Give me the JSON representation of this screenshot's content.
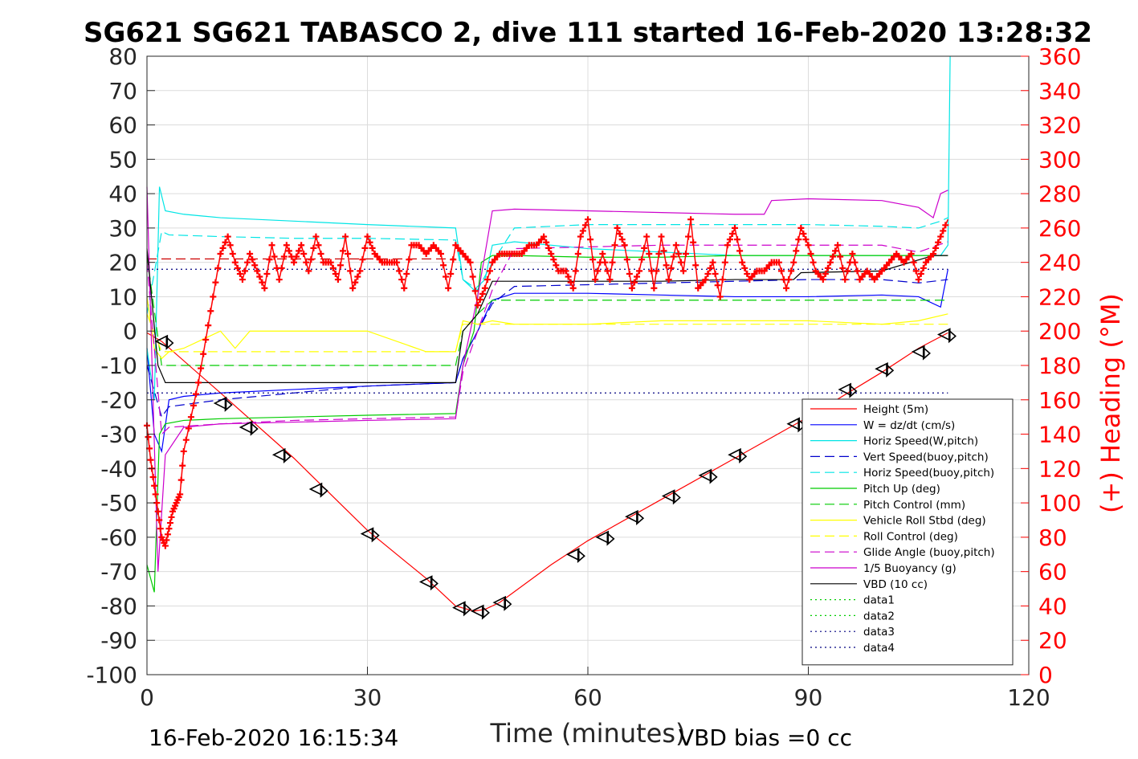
{
  "chart_data": {
    "type": "line",
    "title": "SG621 SG621 TABASCO 2, dive 111 started 16-Feb-2020 13:28:32",
    "xlabel": "Time (minutes)",
    "ylabel_right": "(+) Heading (°M)",
    "footer_left": "16-Feb-2020 16:15:34",
    "footer_right": "VBD bias =0 cc",
    "xlim": [
      0,
      120
    ],
    "ylim": [
      -100,
      80
    ],
    "ylim_right": [
      0,
      360
    ],
    "x_ticks": [
      "0",
      "30",
      "60",
      "90",
      "120"
    ],
    "y_ticks": [
      "80",
      "70",
      "60",
      "50",
      "40",
      "30",
      "20",
      "10",
      "0",
      "-10",
      "-20",
      "-30",
      "-40",
      "-50",
      "-60",
      "-70",
      "-80",
      "-90",
      "-100"
    ],
    "y_ticks_right": [
      "360",
      "340",
      "320",
      "300",
      "280",
      "260",
      "240",
      "220",
      "200",
      "180",
      "160",
      "140",
      "120",
      "100",
      "80",
      "60",
      "40",
      "20",
      "0"
    ],
    "grid": true,
    "legend_position": "bottom-right",
    "series": [
      {
        "name": "Height (5m)",
        "color": "#ff0000",
        "style": "solid",
        "x": [
          0,
          2,
          10,
          20,
          30,
          38,
          42,
          44.5,
          46,
          48,
          55,
          60,
          70,
          80,
          90,
          100,
          105,
          109
        ],
        "y": [
          -0.5,
          -3,
          -18,
          -37,
          -58,
          -72,
          -80,
          -81.5,
          -81,
          -79,
          -68,
          -61,
          -49,
          -37,
          -25,
          -12,
          -5,
          -0.5
        ]
      },
      {
        "name": "W = dz/dt (cm/s)",
        "color": "#0000ff",
        "style": "solid",
        "x": [
          0,
          1,
          2,
          3,
          5,
          10,
          20,
          30,
          42,
          43,
          45,
          47,
          50,
          60,
          70,
          80,
          90,
          100,
          105,
          108,
          109
        ],
        "y": [
          -5,
          -30,
          -35,
          -20,
          -19,
          -18,
          -17,
          -16,
          -15,
          -8,
          0,
          9,
          11,
          11,
          10.5,
          10,
          10,
          10.5,
          10,
          7,
          18
        ]
      },
      {
        "name": "Horiz Speed(W,pitch)",
        "color": "#00e5e5",
        "style": "solid",
        "x": [
          0,
          1,
          1.7,
          2.5,
          5,
          10,
          20,
          30,
          42,
          43,
          44.5,
          46,
          47,
          50,
          60,
          70,
          80,
          90,
          100,
          105,
          108,
          109,
          109.3
        ],
        "y": [
          -5,
          -20,
          42,
          35,
          34,
          33,
          32,
          31,
          30,
          15,
          12,
          15,
          25,
          26,
          24,
          23,
          22,
          22,
          22,
          22,
          22,
          25,
          80
        ]
      },
      {
        "name": "Vert Speed(buoy,pitch)",
        "color": "#0000cc",
        "style": "dash",
        "x": [
          0,
          2,
          3,
          10,
          20,
          30,
          42,
          43,
          45,
          47,
          50,
          60,
          70,
          80,
          90,
          100,
          105,
          109
        ],
        "y": [
          -10,
          -25,
          -22,
          -20,
          -18,
          -16,
          -15,
          -8,
          0,
          8,
          13,
          13.5,
          14,
          14.5,
          15,
          15,
          14,
          15
        ]
      },
      {
        "name": "Horiz Speed(buoy,pitch)",
        "color": "#00e5e5",
        "style": "dash",
        "x": [
          0,
          2,
          3,
          10,
          20,
          30,
          42,
          43,
          45,
          47,
          50,
          60,
          70,
          80,
          90,
          100,
          105,
          108,
          109
        ],
        "y": [
          5,
          29,
          28,
          27.5,
          27,
          27,
          26.5,
          15,
          12,
          20,
          30,
          31,
          31,
          31,
          31,
          30.5,
          30,
          32,
          33
        ]
      },
      {
        "name": "Pitch Up (deg)",
        "color": "#00cc00",
        "style": "solid",
        "x": [
          0,
          1,
          1.7,
          2.5,
          5,
          10,
          20,
          30,
          42,
          43,
          44.5,
          45.5,
          47,
          50,
          60,
          70,
          80,
          90,
          100,
          105,
          109
        ],
        "y": [
          -68,
          -76,
          -30,
          -27,
          -26,
          -25.5,
          -25,
          -24.5,
          -24,
          -10,
          0,
          20,
          22,
          22,
          21.5,
          21.5,
          22,
          22,
          22,
          22,
          22
        ]
      },
      {
        "name": "Pitch Control (mm)",
        "color": "#00cc00",
        "style": "dash",
        "x": [
          0,
          2,
          5,
          42,
          43,
          45,
          47,
          109
        ],
        "y": [
          22,
          -10,
          -10,
          -10,
          0,
          5,
          9,
          9
        ]
      },
      {
        "name": "Vehicle Roll Stbd (deg)",
        "color": "#ffff00",
        "style": "solid",
        "x": [
          0,
          1,
          2,
          3,
          5,
          10,
          12,
          14,
          20,
          30,
          38,
          42,
          43,
          45,
          47,
          50,
          60,
          70,
          80,
          90,
          100,
          105,
          109
        ],
        "y": [
          10,
          -5,
          -8,
          -6,
          -5,
          0,
          -5,
          0,
          0,
          0,
          -6,
          -6,
          3,
          2,
          3,
          2,
          2,
          3,
          3,
          3,
          2,
          3,
          5
        ]
      },
      {
        "name": "Roll Control (deg)",
        "color": "#ffff00",
        "style": "dash",
        "x": [
          0,
          2,
          42,
          43,
          109
        ],
        "y": [
          5,
          -6,
          -6,
          2,
          2
        ]
      },
      {
        "name": "Glide Angle (buoy,pitch)",
        "color": "#cc00cc",
        "style": "dash",
        "x": [
          0,
          2,
          3,
          10,
          20,
          30,
          42,
          43,
          45,
          47,
          50,
          60,
          70,
          80,
          90,
          100,
          105,
          109
        ],
        "y": [
          20,
          -30,
          -28,
          -27,
          -26,
          -25.5,
          -25,
          -12,
          0,
          12,
          24,
          24.5,
          25,
          25,
          25,
          25,
          23,
          26
        ]
      },
      {
        "name": "1/5 Buoyancy (g)",
        "color": "#cc00cc",
        "style": "solid",
        "x": [
          0,
          1.5,
          2.5,
          5,
          10,
          20,
          30,
          42,
          43,
          45,
          47,
          50,
          60,
          70,
          80,
          84,
          85,
          90,
          100,
          105,
          107,
          108,
          109
        ],
        "y": [
          42,
          -70,
          -36,
          -28,
          -27,
          -26.5,
          -26,
          -25.5,
          -10,
          10,
          35,
          35.5,
          35,
          34.5,
          34,
          34,
          38,
          38.5,
          38,
          36,
          33,
          40,
          41
        ]
      },
      {
        "name": "VBD (10 cc)",
        "color": "#000000",
        "style": "solid",
        "x": [
          0,
          1.5,
          2.5,
          5,
          20,
          42,
          43,
          45,
          47,
          50,
          60,
          70,
          80,
          88,
          89,
          100,
          107,
          109
        ],
        "y": [
          24,
          -10,
          -15,
          -15,
          -15,
          -15,
          0,
          5,
          14.5,
          14.5,
          14.5,
          14.5,
          15,
          15,
          17,
          17.5,
          22,
          22
        ]
      },
      {
        "name": "data1",
        "color": "#00cc00",
        "style": "dot",
        "x": [],
        "y": []
      },
      {
        "name": "data2",
        "color": "#00cc00",
        "style": "dot",
        "x": [],
        "y": []
      },
      {
        "name": "data3",
        "color": "#000080",
        "style": "dot",
        "x": [
          0,
          109
        ],
        "y": [
          18,
          18
        ]
      },
      {
        "name": "data4",
        "color": "#000080",
        "style": "dot",
        "x": [
          0,
          109
        ],
        "y": [
          -18,
          -18
        ]
      }
    ],
    "extra_lines": [
      {
        "color": "#cc0000",
        "style": "dash",
        "x": [
          0,
          42
        ],
        "y": [
          21,
          21
        ]
      }
    ],
    "heading": {
      "color": "#ff0000",
      "axis": "right",
      "x": [
        0,
        0.5,
        1,
        1.5,
        2,
        2.5,
        3,
        3.5,
        4,
        4.5,
        5,
        6,
        7,
        8,
        9,
        10,
        11,
        12,
        13,
        14,
        15,
        16,
        17,
        18,
        19,
        20,
        21,
        22,
        23,
        24,
        25,
        26,
        27,
        28,
        29,
        30,
        31,
        32,
        33,
        34,
        35,
        36,
        37,
        38,
        39,
        40,
        41,
        42,
        43,
        44,
        45,
        46,
        47,
        48,
        49,
        50,
        51,
        52,
        53,
        54,
        55,
        56,
        57,
        58,
        59,
        60,
        61,
        62,
        63,
        64,
        65,
        66,
        67,
        68,
        69,
        70,
        71,
        72,
        73,
        74,
        75,
        76,
        77,
        78,
        79,
        80,
        81,
        82,
        83,
        84,
        85,
        86,
        87,
        88,
        89,
        90,
        91,
        92,
        93,
        94,
        95,
        96,
        97,
        98,
        99,
        100,
        101,
        102,
        103,
        104,
        105,
        106,
        107,
        108,
        109
      ],
      "y": [
        145,
        125,
        110,
        95,
        80,
        75,
        85,
        95,
        100,
        105,
        130,
        150,
        170,
        195,
        220,
        245,
        255,
        240,
        230,
        245,
        235,
        225,
        250,
        230,
        250,
        240,
        250,
        235,
        255,
        240,
        240,
        230,
        255,
        225,
        235,
        255,
        245,
        240,
        240,
        240,
        225,
        250,
        250,
        245,
        250,
        245,
        225,
        250,
        245,
        240,
        215,
        225,
        240,
        245,
        245,
        245,
        245,
        250,
        250,
        255,
        245,
        235,
        235,
        225,
        255,
        265,
        230,
        245,
        230,
        260,
        250,
        225,
        235,
        255,
        225,
        255,
        230,
        250,
        235,
        265,
        225,
        230,
        240,
        220,
        250,
        260,
        240,
        230,
        235,
        235,
        240,
        240,
        225,
        240,
        260,
        250,
        235,
        230,
        240,
        250,
        230,
        245,
        230,
        235,
        230,
        235,
        240,
        245,
        240,
        245,
        230,
        240,
        245,
        255,
        265
      ]
    },
    "markers": {
      "label": "dive path markers (triangles)",
      "x": [
        2,
        10,
        13.5,
        18,
        23,
        30,
        38,
        42.5,
        45,
        48,
        58,
        62,
        66,
        71,
        76,
        80,
        88,
        95,
        100,
        105,
        108.5
      ],
      "y": [
        -3,
        -21,
        -28,
        -36,
        -46,
        -59,
        -73,
        -80.5,
        -81.5,
        -79,
        -65,
        -60,
        -54,
        -48,
        -42,
        -36,
        -27,
        -17,
        -11,
        -6,
        -1
      ]
    }
  }
}
